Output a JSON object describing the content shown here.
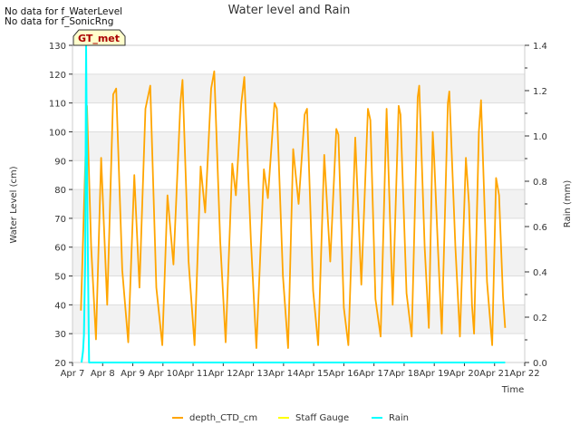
{
  "notes": [
    "No data for f_WaterLevel",
    "No data for f_SonicRng"
  ],
  "chart_data": {
    "type": "line",
    "title": "Water level and Rain",
    "xlabel": "Time",
    "ylabel_left": "Water Level (cm)",
    "ylabel_right": "Rain (mm)",
    "badge": "GT_met",
    "x_ticks": [
      "Apr 7",
      "Apr 8",
      "Apr 9",
      "Apr 10",
      "Apr 11",
      "Apr 12",
      "Apr 13",
      "Apr 14",
      "Apr 15",
      "Apr 16",
      "Apr 17",
      "Apr 18",
      "Apr 19",
      "Apr 20",
      "Apr 21",
      "Apr 22"
    ],
    "x_range_days": [
      7,
      22
    ],
    "ylim_left": [
      20,
      130
    ],
    "y_ticks_left": [
      20,
      30,
      40,
      50,
      60,
      70,
      80,
      90,
      100,
      110,
      120,
      130
    ],
    "ylim_right": [
      0,
      1.4
    ],
    "y_ticks_right": [
      "0.0",
      "0.2",
      "0.4",
      "0.6",
      "0.8",
      "1.0",
      "1.2",
      "1.4"
    ],
    "legend_placement": "bottom-center",
    "series": [
      {
        "name": "depth_CTD_cm",
        "color": "#FFA500",
        "points": [
          [
            7.28,
            38
          ],
          [
            7.48,
            109
          ],
          [
            7.62,
            60
          ],
          [
            7.78,
            28
          ],
          [
            7.95,
            91
          ],
          [
            8.15,
            40
          ],
          [
            8.35,
            113
          ],
          [
            8.45,
            115
          ],
          [
            8.65,
            52
          ],
          [
            8.85,
            27
          ],
          [
            9.05,
            85
          ],
          [
            9.22,
            46
          ],
          [
            9.42,
            108
          ],
          [
            9.58,
            116
          ],
          [
            9.78,
            46
          ],
          [
            9.98,
            26
          ],
          [
            10.15,
            78
          ],
          [
            10.35,
            54
          ],
          [
            10.58,
            110
          ],
          [
            10.65,
            118
          ],
          [
            10.85,
            55
          ],
          [
            11.05,
            26
          ],
          [
            11.25,
            88
          ],
          [
            11.4,
            72
          ],
          [
            11.6,
            115
          ],
          [
            11.7,
            121
          ],
          [
            11.9,
            62
          ],
          [
            12.08,
            27
          ],
          [
            12.3,
            89
          ],
          [
            12.42,
            78
          ],
          [
            12.6,
            110
          ],
          [
            12.7,
            119
          ],
          [
            12.92,
            62
          ],
          [
            13.1,
            25
          ],
          [
            13.35,
            87
          ],
          [
            13.48,
            77
          ],
          [
            13.7,
            110
          ],
          [
            13.78,
            108
          ],
          [
            13.98,
            50
          ],
          [
            14.15,
            25
          ],
          [
            14.32,
            94
          ],
          [
            14.5,
            75
          ],
          [
            14.7,
            106
          ],
          [
            14.78,
            108
          ],
          [
            14.98,
            45
          ],
          [
            15.15,
            26
          ],
          [
            15.35,
            92
          ],
          [
            15.55,
            55
          ],
          [
            15.75,
            101
          ],
          [
            15.82,
            99
          ],
          [
            16,
            39
          ],
          [
            16.15,
            26
          ],
          [
            16.38,
            98
          ],
          [
            16.58,
            47
          ],
          [
            16.8,
            108
          ],
          [
            16.88,
            104
          ],
          [
            17.05,
            42
          ],
          [
            17.22,
            29
          ],
          [
            17.42,
            108
          ],
          [
            17.62,
            40
          ],
          [
            17.82,
            109
          ],
          [
            17.88,
            106
          ],
          [
            18.08,
            44
          ],
          [
            18.25,
            29
          ],
          [
            18.45,
            112
          ],
          [
            18.5,
            116
          ],
          [
            18.68,
            60
          ],
          [
            18.82,
            32
          ],
          [
            18.95,
            100
          ],
          [
            19.0,
            90
          ],
          [
            19.12,
            60
          ],
          [
            19.25,
            30
          ],
          [
            19.45,
            110
          ],
          [
            19.5,
            114
          ],
          [
            19.7,
            60
          ],
          [
            19.85,
            29
          ],
          [
            20.05,
            91
          ],
          [
            20.15,
            75
          ],
          [
            20.25,
            40
          ],
          [
            20.32,
            30
          ],
          [
            20.48,
            100
          ],
          [
            20.55,
            111
          ],
          [
            20.75,
            48
          ],
          [
            20.92,
            26
          ],
          [
            21.05,
            84
          ],
          [
            21.15,
            78
          ],
          [
            21.28,
            43
          ],
          [
            21.35,
            32
          ]
        ]
      },
      {
        "name": "Staff Gauge",
        "color": "#FFFF00",
        "points": []
      },
      {
        "name": "Rain",
        "color": "#00FFFF",
        "points": [
          [
            7.3,
            0
          ],
          [
            7.35,
            0.05
          ],
          [
            7.38,
            0.12
          ],
          [
            7.42,
            0.45
          ],
          [
            7.45,
            1.4
          ],
          [
            7.5,
            0.6
          ],
          [
            7.55,
            0
          ],
          [
            21.35,
            0
          ]
        ]
      }
    ]
  }
}
